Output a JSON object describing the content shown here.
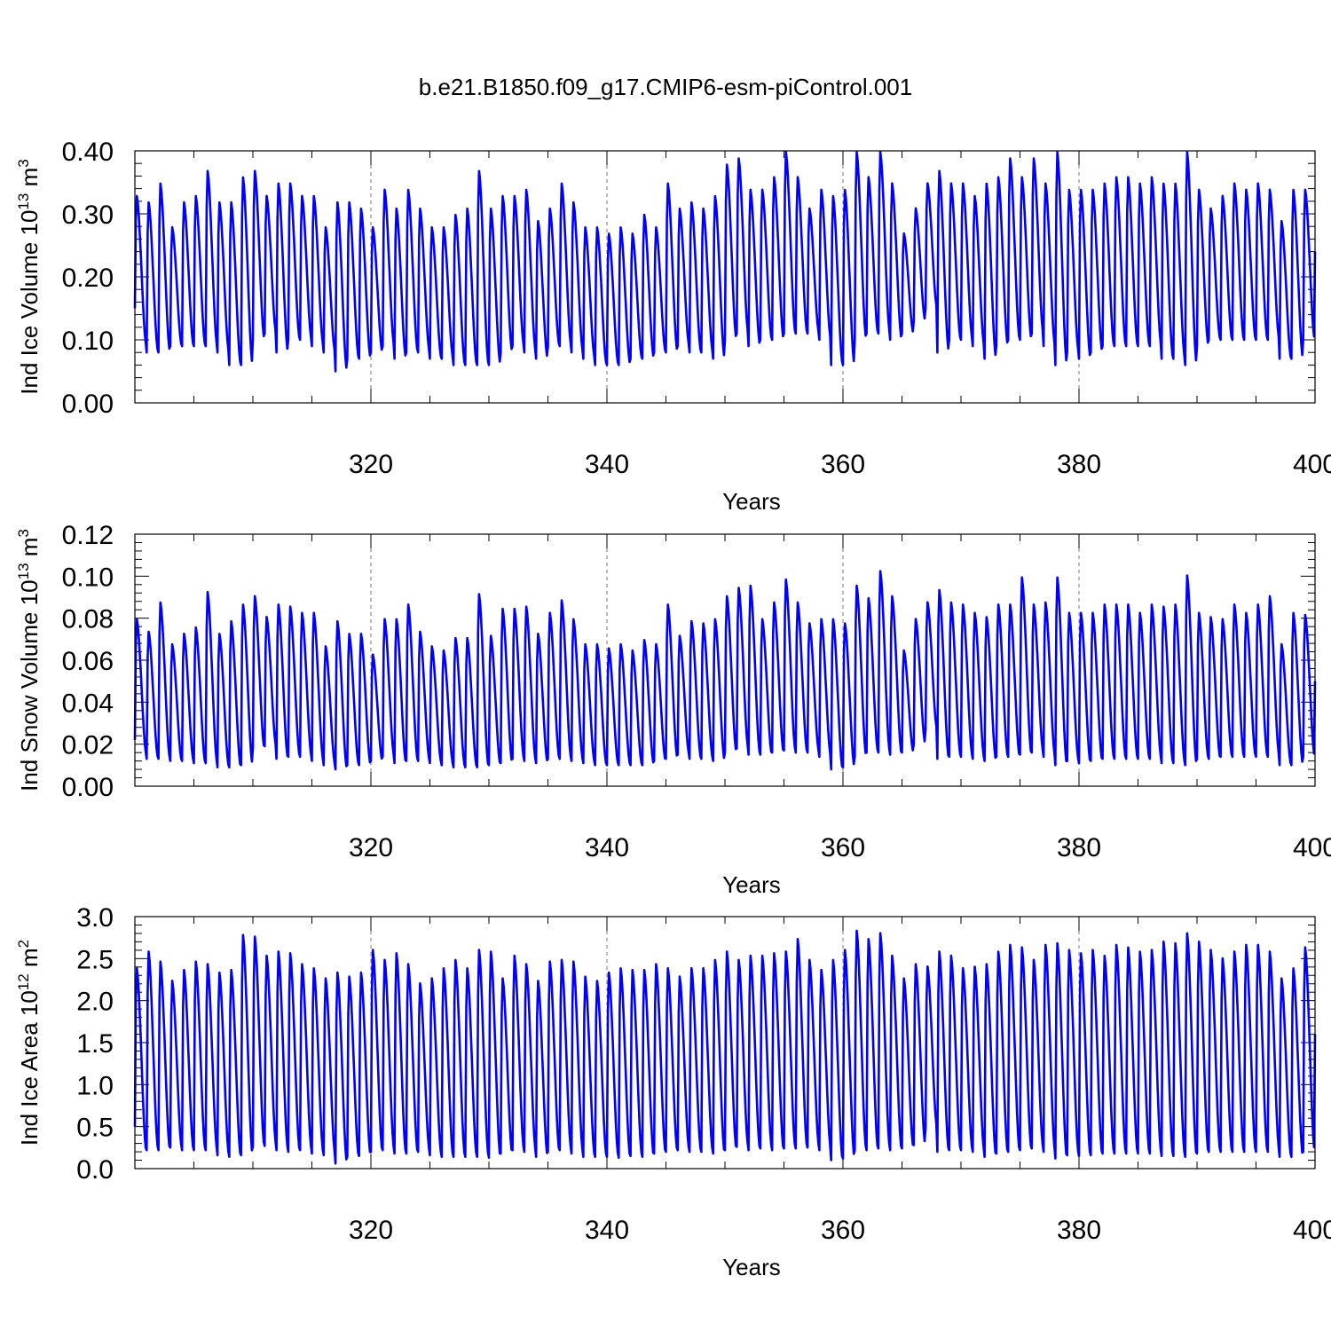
{
  "figure": {
    "title": "b.e21.B1850.f09_g17.CMIP6-esm-piControl.001",
    "line_color": "#0000ff"
  },
  "chart_data": [
    {
      "type": "line",
      "title": "",
      "xlabel": "Years",
      "ylabel": "Ind Ice Volume 10¹³ m³",
      "ylabel_parts": {
        "base": "Ind Ice Volume 10",
        "exp": "13",
        "unit": " m",
        "unit_exp": "3"
      },
      "xlim": [
        300,
        400
      ],
      "ylim": [
        0.0,
        0.4
      ],
      "xticks": [
        320,
        340,
        360,
        380,
        400
      ],
      "yticks": [
        0.0,
        0.1,
        0.2,
        0.3,
        0.4
      ],
      "ytick_labels": [
        "0.00",
        "0.10",
        "0.20",
        "0.30",
        "0.40"
      ],
      "grid": "vertical dashed at 320, 340, 360, 380",
      "series": [
        {
          "color": "#0000ff",
          "resolution": "monthly",
          "x_start": 300.0,
          "annual_max": [
            0.33,
            0.32,
            0.35,
            0.28,
            0.32,
            0.33,
            0.37,
            0.32,
            0.32,
            0.36,
            0.37,
            0.33,
            0.35,
            0.35,
            0.33,
            0.33,
            0.28,
            0.32,
            0.32,
            0.31,
            0.28,
            0.34,
            0.31,
            0.34,
            0.31,
            0.28,
            0.28,
            0.3,
            0.31,
            0.37,
            0.31,
            0.33,
            0.33,
            0.34,
            0.29,
            0.31,
            0.35,
            0.32,
            0.28,
            0.28,
            0.27,
            0.28,
            0.27,
            0.3,
            0.28,
            0.35,
            0.31,
            0.32,
            0.31,
            0.33,
            0.38,
            0.39,
            0.34,
            0.34,
            0.36,
            0.4,
            0.36,
            0.31,
            0.34,
            0.33,
            0.34,
            0.4,
            0.36,
            0.4,
            0.35,
            0.27,
            0.31,
            0.35,
            0.37,
            0.35,
            0.35,
            0.33,
            0.35,
            0.36,
            0.39,
            0.36,
            0.39,
            0.35,
            0.4,
            0.34,
            0.34,
            0.34,
            0.35,
            0.36,
            0.36,
            0.35,
            0.36,
            0.35,
            0.35,
            0.4,
            0.34,
            0.31,
            0.33,
            0.35,
            0.34,
            0.35,
            0.34,
            0.29,
            0.34,
            0.34
          ],
          "annual_min": [
            0.09,
            0.08,
            0.08,
            0.09,
            0.09,
            0.09,
            0.09,
            0.08,
            0.06,
            0.06,
            0.1,
            0.11,
            0.08,
            0.1,
            0.1,
            0.09,
            0.08,
            0.05,
            0.07,
            0.07,
            0.08,
            0.09,
            0.07,
            0.08,
            0.08,
            0.07,
            0.07,
            0.06,
            0.06,
            0.06,
            0.06,
            0.08,
            0.09,
            0.08,
            0.07,
            0.09,
            0.09,
            0.08,
            0.07,
            0.06,
            0.06,
            0.06,
            0.07,
            0.07,
            0.08,
            0.08,
            0.09,
            0.08,
            0.08,
            0.07,
            0.1,
            0.11,
            0.09,
            0.1,
            0.1,
            0.11,
            0.11,
            0.11,
            0.1,
            0.06,
            0.06,
            0.1,
            0.11,
            0.11,
            0.1,
            0.11,
            0.13,
            0.15,
            0.08,
            0.1,
            0.1,
            0.09,
            0.07,
            0.09,
            0.1,
            0.1,
            0.11,
            0.09,
            0.06,
            0.08,
            0.07,
            0.08,
            0.09,
            0.09,
            0.09,
            0.09,
            0.09,
            0.07,
            0.07,
            0.06,
            0.09,
            0.1,
            0.1,
            0.1,
            0.1,
            0.1,
            0.1,
            0.07,
            0.07,
            0.1
          ],
          "start_value": 0.15,
          "end_value": 0.24
        }
      ]
    },
    {
      "type": "line",
      "title": "",
      "xlabel": "Years",
      "ylabel": "Ind Snow Volume 10¹³ m³",
      "ylabel_parts": {
        "base": "Ind Snow Volume 10",
        "exp": "13",
        "unit": " m",
        "unit_exp": "3"
      },
      "xlim": [
        300,
        400
      ],
      "ylim": [
        0.0,
        0.12
      ],
      "xticks": [
        320,
        340,
        360,
        380,
        400
      ],
      "yticks": [
        0.0,
        0.02,
        0.04,
        0.06,
        0.08,
        0.1,
        0.12
      ],
      "ytick_labels": [
        "0.00",
        "0.02",
        "0.04",
        "0.06",
        "0.08",
        "0.10",
        "0.12"
      ],
      "grid": "vertical dashed at 320, 340, 360, 380",
      "series": [
        {
          "color": "#0000ff",
          "resolution": "monthly",
          "x_start": 300.0,
          "annual_max": [
            0.08,
            0.074,
            0.088,
            0.068,
            0.073,
            0.076,
            0.093,
            0.073,
            0.079,
            0.087,
            0.091,
            0.081,
            0.087,
            0.086,
            0.083,
            0.083,
            0.067,
            0.079,
            0.073,
            0.073,
            0.063,
            0.08,
            0.08,
            0.087,
            0.074,
            0.067,
            0.065,
            0.071,
            0.071,
            0.092,
            0.072,
            0.085,
            0.085,
            0.086,
            0.073,
            0.083,
            0.089,
            0.08,
            0.068,
            0.068,
            0.066,
            0.068,
            0.065,
            0.07,
            0.068,
            0.087,
            0.072,
            0.079,
            0.078,
            0.08,
            0.091,
            0.095,
            0.096,
            0.08,
            0.088,
            0.099,
            0.088,
            0.078,
            0.08,
            0.08,
            0.078,
            0.096,
            0.09,
            0.103,
            0.091,
            0.065,
            0.08,
            0.088,
            0.094,
            0.088,
            0.087,
            0.083,
            0.081,
            0.087,
            0.087,
            0.1,
            0.087,
            0.088,
            0.1,
            0.083,
            0.083,
            0.083,
            0.087,
            0.087,
            0.087,
            0.083,
            0.087,
            0.086,
            0.087,
            0.101,
            0.083,
            0.081,
            0.08,
            0.087,
            0.083,
            0.087,
            0.091,
            0.068,
            0.083,
            0.082
          ],
          "annual_min": [
            0.015,
            0.013,
            0.013,
            0.012,
            0.012,
            0.011,
            0.011,
            0.009,
            0.009,
            0.01,
            0.018,
            0.019,
            0.013,
            0.014,
            0.014,
            0.012,
            0.01,
            0.008,
            0.01,
            0.01,
            0.012,
            0.014,
            0.011,
            0.012,
            0.012,
            0.011,
            0.01,
            0.009,
            0.009,
            0.009,
            0.01,
            0.011,
            0.013,
            0.012,
            0.011,
            0.013,
            0.013,
            0.012,
            0.011,
            0.01,
            0.01,
            0.01,
            0.01,
            0.01,
            0.012,
            0.013,
            0.015,
            0.013,
            0.013,
            0.012,
            0.016,
            0.018,
            0.015,
            0.015,
            0.016,
            0.017,
            0.016,
            0.016,
            0.014,
            0.008,
            0.009,
            0.014,
            0.016,
            0.016,
            0.015,
            0.016,
            0.02,
            0.027,
            0.013,
            0.014,
            0.014,
            0.013,
            0.012,
            0.014,
            0.014,
            0.015,
            0.016,
            0.014,
            0.01,
            0.012,
            0.011,
            0.012,
            0.013,
            0.013,
            0.013,
            0.013,
            0.013,
            0.011,
            0.011,
            0.01,
            0.013,
            0.013,
            0.014,
            0.014,
            0.014,
            0.014,
            0.014,
            0.01,
            0.01,
            0.014
          ],
          "start_value": 0.022,
          "end_value": 0.05
        }
      ]
    },
    {
      "type": "line",
      "title": "",
      "xlabel": "Years",
      "ylabel": "Ind Ice Area 10¹² m²",
      "ylabel_parts": {
        "base": "Ind Ice Area 10",
        "exp": "12",
        "unit": " m",
        "unit_exp": "2"
      },
      "xlim": [
        300,
        400
      ],
      "ylim": [
        0.0,
        3.0
      ],
      "xticks": [
        320,
        340,
        360,
        380,
        400
      ],
      "yticks": [
        0.0,
        0.5,
        1.0,
        1.5,
        2.0,
        2.5,
        3.0
      ],
      "ytick_labels": [
        "0.0",
        "0.5",
        "1.0",
        "1.5",
        "2.0",
        "2.5",
        "3.0"
      ],
      "grid": "vertical dashed at 320, 340, 360, 380",
      "series": [
        {
          "color": "#0000ff",
          "resolution": "monthly",
          "x_start": 300.0,
          "annual_max": [
            2.4,
            2.6,
            2.48,
            2.25,
            2.38,
            2.48,
            2.45,
            2.35,
            2.38,
            2.8,
            2.78,
            2.55,
            2.6,
            2.58,
            2.45,
            2.4,
            2.28,
            2.35,
            2.3,
            2.35,
            2.62,
            2.5,
            2.58,
            2.45,
            2.22,
            2.28,
            2.4,
            2.5,
            2.4,
            2.62,
            2.6,
            2.28,
            2.55,
            2.45,
            2.25,
            2.48,
            2.5,
            2.48,
            2.3,
            2.25,
            2.35,
            2.4,
            2.38,
            2.38,
            2.45,
            2.4,
            2.3,
            2.4,
            2.4,
            2.5,
            2.6,
            2.5,
            2.55,
            2.55,
            2.58,
            2.6,
            2.75,
            2.5,
            2.38,
            2.5,
            2.62,
            2.85,
            2.75,
            2.82,
            2.55,
            2.28,
            2.45,
            2.42,
            2.6,
            2.55,
            2.4,
            2.42,
            2.45,
            2.6,
            2.68,
            2.65,
            2.5,
            2.68,
            2.7,
            2.62,
            2.58,
            2.62,
            2.55,
            2.68,
            2.65,
            2.6,
            2.62,
            2.72,
            2.7,
            2.82,
            2.72,
            2.62,
            2.52,
            2.6,
            2.68,
            2.68,
            2.6,
            2.28,
            2.4,
            2.65
          ],
          "annual_min": [
            0.2,
            0.22,
            0.22,
            0.25,
            0.22,
            0.22,
            0.22,
            0.16,
            0.14,
            0.16,
            0.26,
            0.27,
            0.22,
            0.2,
            0.22,
            0.18,
            0.16,
            0.06,
            0.14,
            0.15,
            0.2,
            0.22,
            0.18,
            0.18,
            0.2,
            0.16,
            0.14,
            0.14,
            0.14,
            0.14,
            0.13,
            0.18,
            0.22,
            0.2,
            0.14,
            0.2,
            0.22,
            0.18,
            0.14,
            0.14,
            0.14,
            0.13,
            0.15,
            0.14,
            0.18,
            0.2,
            0.22,
            0.2,
            0.2,
            0.18,
            0.22,
            0.26,
            0.22,
            0.24,
            0.22,
            0.24,
            0.24,
            0.25,
            0.22,
            0.1,
            0.12,
            0.22,
            0.22,
            0.24,
            0.22,
            0.24,
            0.28,
            0.48,
            0.2,
            0.22,
            0.22,
            0.2,
            0.14,
            0.18,
            0.2,
            0.22,
            0.24,
            0.2,
            0.12,
            0.16,
            0.15,
            0.16,
            0.18,
            0.18,
            0.18,
            0.18,
            0.18,
            0.15,
            0.15,
            0.14,
            0.18,
            0.2,
            0.2,
            0.2,
            0.2,
            0.2,
            0.2,
            0.14,
            0.14,
            0.2
          ],
          "start_value": 0.5,
          "end_value": 1.6
        }
      ]
    }
  ]
}
